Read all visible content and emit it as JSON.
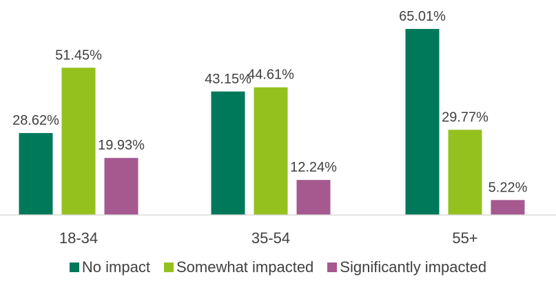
{
  "chart_data": {
    "type": "bar",
    "categories": [
      "18-34",
      "35-54",
      "55+"
    ],
    "series": [
      {
        "name": "No impact",
        "color": "#00785a",
        "values": [
          28.62,
          43.15,
          65.01
        ],
        "labels": [
          "28.62%",
          "43.15%",
          "65.01%"
        ]
      },
      {
        "name": "Somewhat impacted",
        "color": "#95c11f",
        "values": [
          51.45,
          44.61,
          29.77
        ],
        "labels": [
          "51.45%",
          "44.61%",
          "29.77%"
        ]
      },
      {
        "name": "Significantly impacted",
        "color": "#a5598f",
        "values": [
          19.93,
          12.24,
          5.22
        ],
        "labels": [
          "19.93%",
          "12.24%",
          "5.22%"
        ]
      }
    ],
    "title": "",
    "xlabel": "",
    "ylabel": "",
    "ylim": [
      0,
      70
    ],
    "grid": false,
    "legend_position": "bottom"
  }
}
